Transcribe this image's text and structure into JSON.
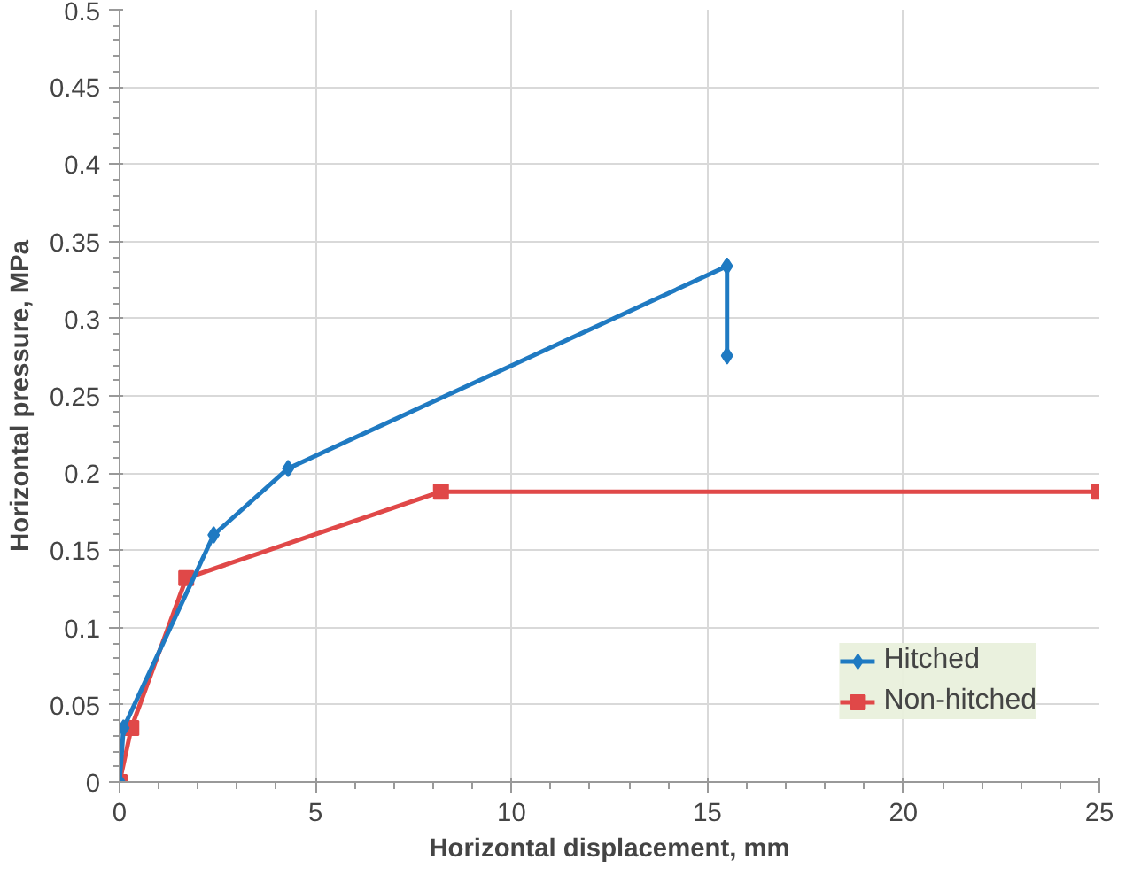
{
  "chart_data": {
    "type": "line",
    "xlabel": "Horizontal displacement, mm",
    "ylabel": "Horizontal pressure, MPa",
    "xlim": [
      0,
      25
    ],
    "ylim": [
      0,
      0.5
    ],
    "xticks": [
      0,
      5,
      10,
      15,
      20,
      25
    ],
    "yticks": [
      0,
      0.05,
      0.1,
      0.15,
      0.2,
      0.25,
      0.3,
      0.35,
      0.4,
      0.45,
      0.5
    ],
    "grid": true,
    "legend": "bottom right",
    "line_style": "solid",
    "series": [
      {
        "name": "Hitched",
        "color": "#1f7ac2",
        "marker": "diamond",
        "x": [
          0,
          0.1,
          2.4,
          4.3,
          15.5,
          15.5
        ],
        "values": [
          0,
          0.035,
          0.16,
          0.203,
          0.334,
          0.276
        ]
      },
      {
        "name": "Non-hitched",
        "color": "#e04848",
        "marker": "square",
        "x": [
          0,
          0.3,
          1.7,
          8.2,
          25
        ],
        "values": [
          0,
          0.035,
          0.132,
          0.188,
          0.188
        ]
      }
    ]
  }
}
